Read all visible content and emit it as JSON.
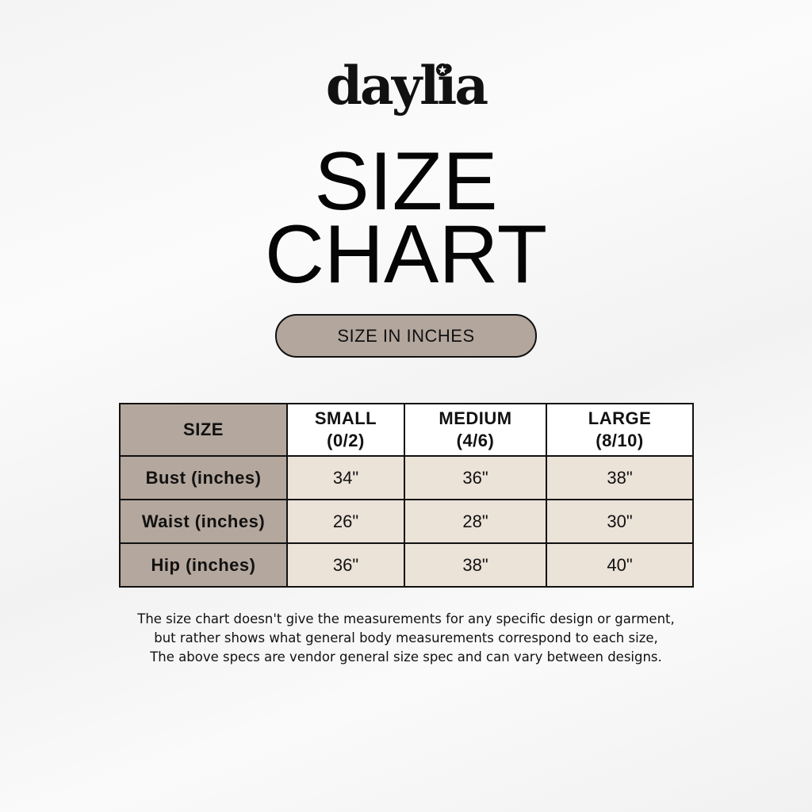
{
  "brand": {
    "logo_text": "daylia"
  },
  "title": {
    "line1": "SIZE",
    "line2": "CHART"
  },
  "unit_badge": "SIZE IN INCHES",
  "colors": {
    "label_column": "#b4a79d",
    "value_cells": "#ebe2d8",
    "badge": "#b3a69d"
  },
  "table": {
    "corner": "SIZE",
    "columns": [
      {
        "name": "SMALL",
        "range": "(0/2)"
      },
      {
        "name": "MEDIUM",
        "range": "(4/6)"
      },
      {
        "name": "LARGE",
        "range": "(8/10)"
      }
    ],
    "rows": [
      {
        "label": "Bust (inches)",
        "values": [
          "34\"",
          "36\"",
          "38\""
        ]
      },
      {
        "label": "Waist (inches)",
        "values": [
          "26\"",
          "28\"",
          "30\""
        ]
      },
      {
        "label": "Hip (inches)",
        "values": [
          "36\"",
          "38\"",
          "40\""
        ]
      }
    ]
  },
  "footnote": [
    "The size chart doesn't give the measurements for any specific design or garment,",
    "but rather shows what general body measurements correspond to each size,",
    "The above specs are vendor general size spec and can vary between designs."
  ]
}
